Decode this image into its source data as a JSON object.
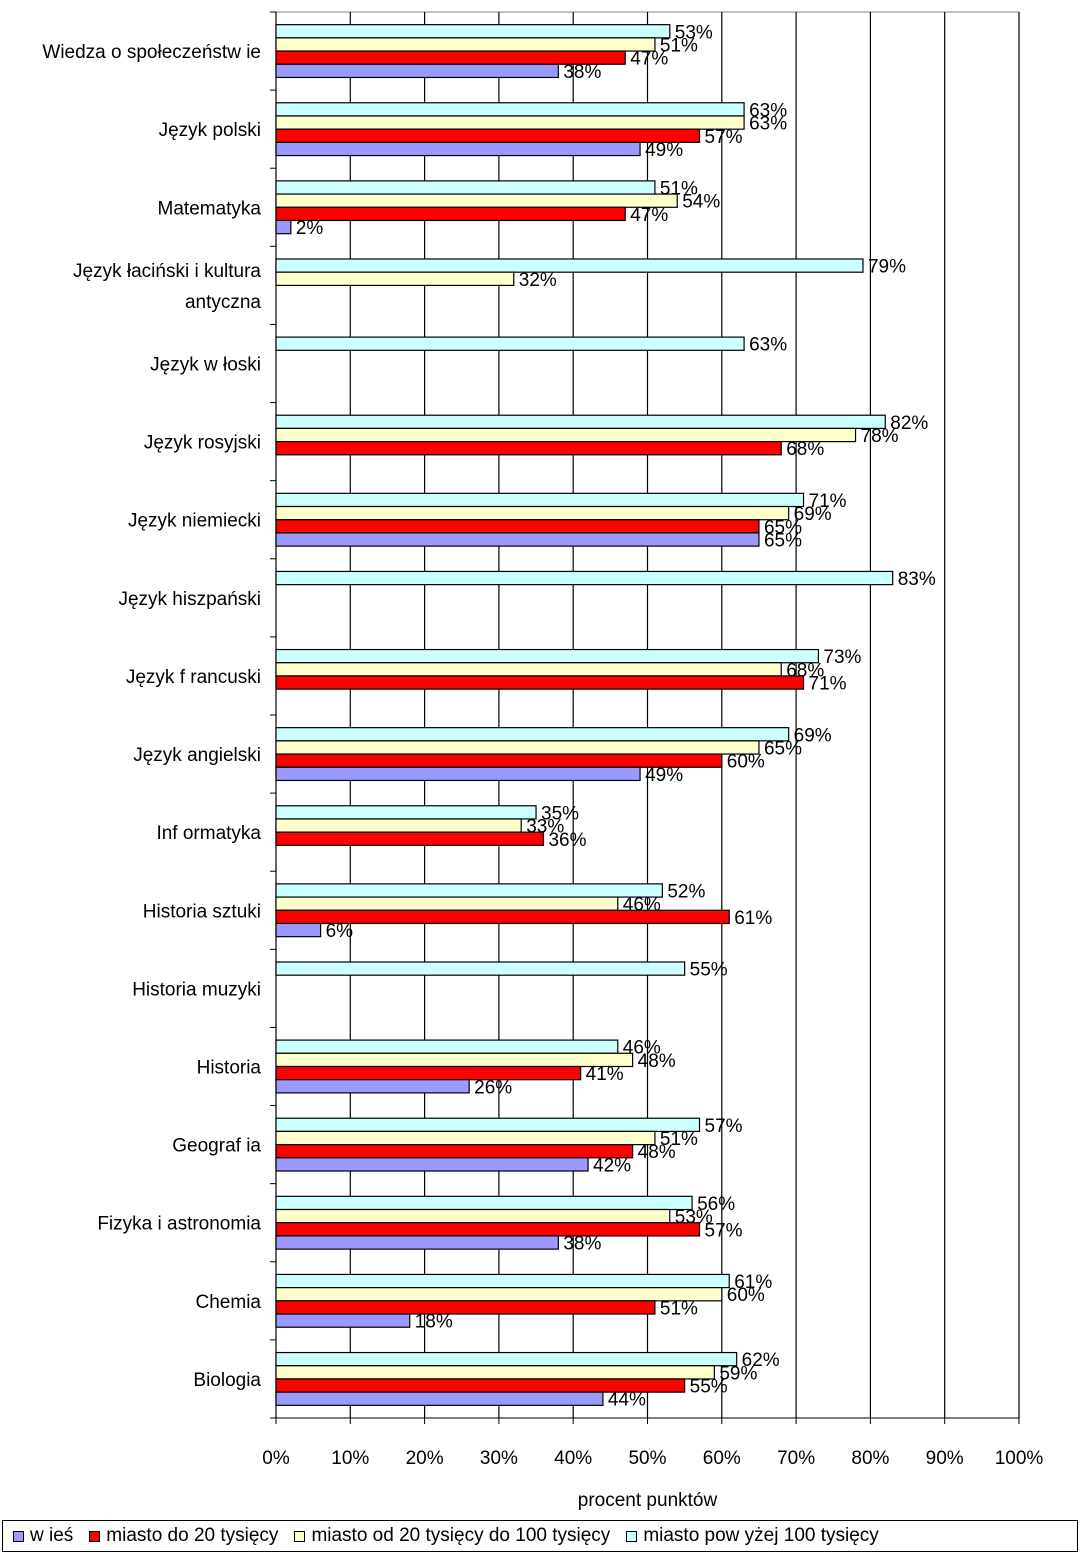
{
  "chart_data": {
    "type": "bar",
    "orientation": "horizontal",
    "xlabel": "procent punktów",
    "xlim": [
      0,
      100
    ],
    "x_ticks": [
      "0%",
      "10%",
      "20%",
      "30%",
      "40%",
      "50%",
      "60%",
      "70%",
      "80%",
      "90%",
      "100%"
    ],
    "grid": "vertical",
    "legend_position": "bottom",
    "categories": [
      "Wiedza o społeczeństw ie",
      "Język polski",
      "Matematyka",
      "Język łaciński i kultura antyczna",
      "Język w łoski",
      "Język rosyjski",
      "Język niemiecki",
      "Język hiszpański",
      "Język francuski",
      "Język angielski",
      "Informatyka",
      "Historia sztuki",
      "Historia muzyki",
      "Historia",
      "Geografia",
      "Fizyka i astronomia",
      "Chemia",
      "Biologia"
    ],
    "category_lines": [
      [
        "Wiedza o społeczeństw ie"
      ],
      [
        "Język polski"
      ],
      [
        "Matematyka"
      ],
      [
        "Język łaciński i kultura",
        "antyczna"
      ],
      [
        "Język w łoski"
      ],
      [
        "Język rosyjski"
      ],
      [
        "Język niemiecki"
      ],
      [
        "Język hiszpański"
      ],
      [
        "Język f rancuski"
      ],
      [
        "Język angielski"
      ],
      [
        "Inf ormatyka"
      ],
      [
        "Historia sztuki"
      ],
      [
        "Historia muzyki"
      ],
      [
        "Historia"
      ],
      [
        "Geograf ia"
      ],
      [
        "Fizyka i astronomia"
      ],
      [
        "Chemia"
      ],
      [
        "Biologia"
      ]
    ],
    "series": [
      {
        "name": "miasto pow yżej 100 tysięcy",
        "color": "#ccffff",
        "values": [
          53,
          63,
          51,
          79,
          63,
          82,
          71,
          83,
          73,
          69,
          35,
          52,
          55,
          46,
          57,
          56,
          61,
          62
        ]
      },
      {
        "name": "miasto od 20 tysięcy do 100 tysięcy",
        "color": "#ffffcc",
        "values": [
          51,
          63,
          54,
          32,
          null,
          78,
          69,
          null,
          68,
          65,
          33,
          46,
          null,
          48,
          51,
          53,
          60,
          59
        ]
      },
      {
        "name": "miasto do 20 tysięcy",
        "color": "#ff0000",
        "values": [
          47,
          57,
          47,
          null,
          null,
          68,
          65,
          null,
          71,
          60,
          36,
          61,
          null,
          41,
          48,
          57,
          51,
          55
        ]
      },
      {
        "name": "w ieś",
        "color": "#9999ff",
        "values": [
          38,
          49,
          2,
          null,
          null,
          null,
          65,
          null,
          null,
          49,
          null,
          6,
          null,
          26,
          42,
          38,
          18,
          44
        ]
      }
    ],
    "legend": [
      {
        "label": "w ieś",
        "color": "#9999ff"
      },
      {
        "label": "miasto do 20 tysięcy",
        "color": "#ff0000"
      },
      {
        "label": "miasto od 20 tysięcy do 100 tysięcy",
        "color": "#ffffcc"
      },
      {
        "label": "miasto pow yżej 100 tysięcy",
        "color": "#ccffff"
      }
    ]
  }
}
